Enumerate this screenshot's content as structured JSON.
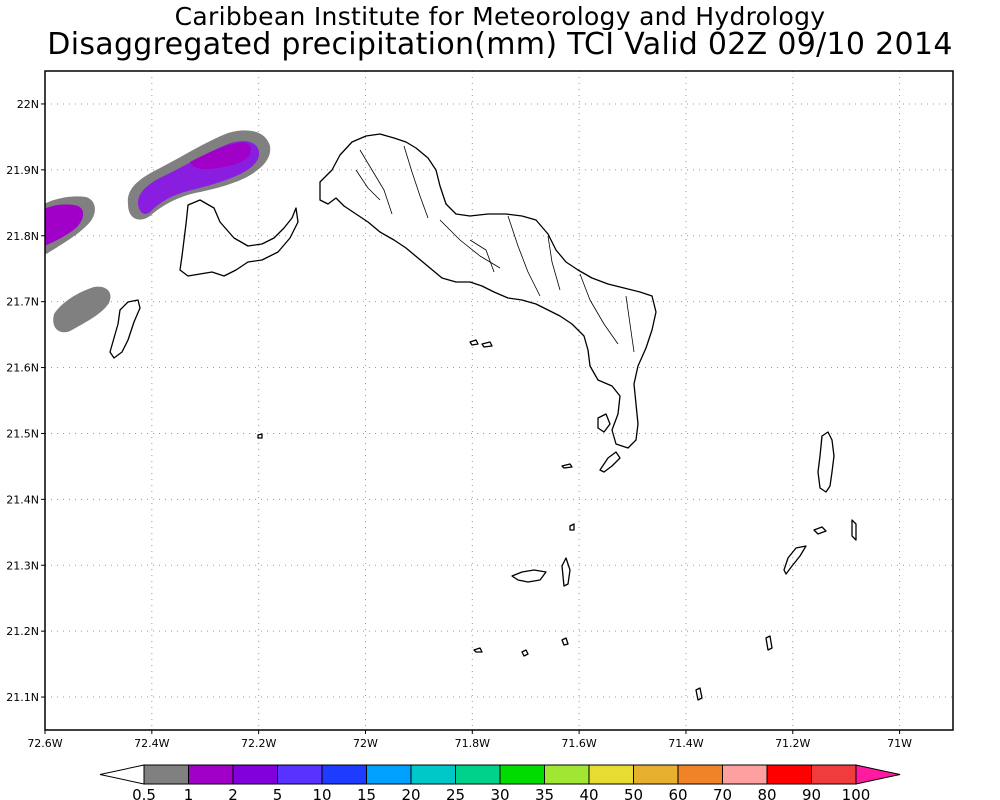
{
  "title": {
    "line1": "Caribbean Institute for Meteorology and Hydrology",
    "line2": "Disaggregated precipitation(mm) TCI Valid 02Z 09/10 2014"
  },
  "map": {
    "lon_range": [
      -72.6,
      -70.9
    ],
    "lat_range": [
      21.05,
      22.05
    ],
    "lon_ticks": [
      {
        "value": -72.6,
        "label": "72.6W"
      },
      {
        "value": -72.4,
        "label": "72.4W"
      },
      {
        "value": -72.2,
        "label": "72.2W"
      },
      {
        "value": -72.0,
        "label": "72W"
      },
      {
        "value": -71.8,
        "label": "71.8W"
      },
      {
        "value": -71.6,
        "label": "71.6W"
      },
      {
        "value": -71.4,
        "label": "71.4W"
      },
      {
        "value": -71.2,
        "label": "71.2W"
      },
      {
        "value": -71.0,
        "label": "71W"
      }
    ],
    "lat_ticks": [
      {
        "value": 22.0,
        "label": "22N"
      },
      {
        "value": 21.9,
        "label": "21.9N"
      },
      {
        "value": 21.8,
        "label": "21.8N"
      },
      {
        "value": 21.7,
        "label": "21.7N"
      },
      {
        "value": 21.6,
        "label": "21.6N"
      },
      {
        "value": 21.5,
        "label": "21.5N"
      },
      {
        "value": 21.4,
        "label": "21.4N"
      },
      {
        "value": 21.3,
        "label": "21.3N"
      },
      {
        "value": 21.2,
        "label": "21.2N"
      },
      {
        "value": 21.1,
        "label": "21.1N"
      }
    ],
    "grid": "dotted"
  },
  "colorbar": {
    "labels": [
      "0.5",
      "1",
      "2",
      "5",
      "10",
      "15",
      "20",
      "25",
      "30",
      "35",
      "40",
      "50",
      "60",
      "70",
      "80",
      "90",
      "100"
    ],
    "colors": [
      "#808080",
      "#a000c8",
      "#8200dc",
      "#5a32ff",
      "#1e3cff",
      "#00a0ff",
      "#00c8c8",
      "#00d28c",
      "#00dc00",
      "#a0e632",
      "#e6dc32",
      "#e6af2d",
      "#f08228",
      "#ffa0a0",
      "#ff0000",
      "#f03c3c"
    ],
    "under_color": "#ffffff",
    "over_color": "#ff1aa0"
  }
}
